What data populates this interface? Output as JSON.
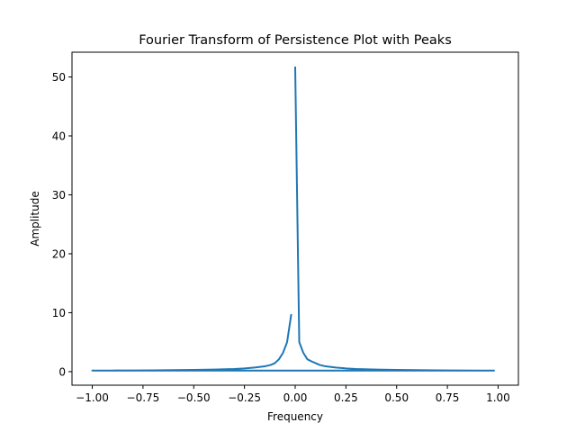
{
  "chart_data": {
    "type": "line",
    "title": "Fourier Transform of Persistence Plot with Peaks",
    "xlabel": "Frequency",
    "ylabel": "Amplitude",
    "xlim": [
      -1.1,
      1.1
    ],
    "ylim": [
      -2.3,
      54.2
    ],
    "x_ticks": [
      -1.0,
      -0.75,
      -0.5,
      -0.25,
      0.0,
      0.25,
      0.5,
      0.75,
      1.0
    ],
    "x_tick_labels": [
      "−1.00",
      "−0.75",
      "−0.50",
      "−0.25",
      "0.00",
      "0.25",
      "0.50",
      "0.75",
      "1.00"
    ],
    "y_ticks": [
      0,
      10,
      20,
      30,
      40,
      50
    ],
    "y_tick_labels": [
      "0",
      "10",
      "20",
      "30",
      "40",
      "50"
    ],
    "grid": false,
    "color": "#1f77b4",
    "series": [
      {
        "x": [
          0.0,
          0.02,
          0.04,
          0.06,
          0.08,
          0.1,
          0.12,
          0.15,
          0.2,
          0.25,
          0.3,
          0.4,
          0.5,
          0.6,
          0.7,
          0.8,
          0.9,
          0.98,
          -1.0,
          -0.9,
          -0.8,
          -0.7,
          -0.6,
          -0.5,
          -0.4,
          -0.3,
          -0.25,
          -0.2,
          -0.15,
          -0.12,
          -0.1,
          -0.08,
          -0.06,
          -0.04,
          -0.02
        ],
        "y": [
          51.6,
          5.0,
          3.2,
          2.1,
          1.75,
          1.45,
          1.15,
          0.9,
          0.7,
          0.55,
          0.45,
          0.35,
          0.3,
          0.25,
          0.22,
          0.2,
          0.19,
          0.18,
          0.18,
          0.19,
          0.2,
          0.22,
          0.25,
          0.3,
          0.35,
          0.45,
          0.55,
          0.7,
          0.9,
          1.15,
          1.45,
          2.1,
          3.2,
          5.0,
          9.6
        ]
      }
    ]
  }
}
